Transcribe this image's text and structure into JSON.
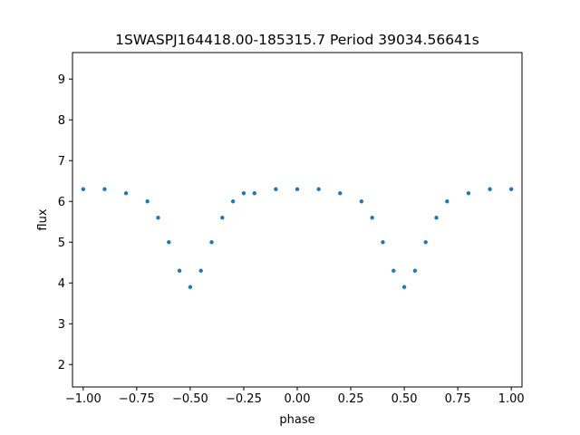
{
  "chart_data": {
    "type": "scatter",
    "title": "1SWASPJ164418.00-185315.7 Period 39034.56641s",
    "xlabel": "phase",
    "ylabel": "flux",
    "xlim": [
      -1.05,
      1.05
    ],
    "ylim": [
      1.45,
      9.65
    ],
    "x_ticks": [
      -1.0,
      -0.75,
      -0.5,
      -0.25,
      0.0,
      0.25,
      0.5,
      0.75,
      1.0
    ],
    "x_tick_labels": [
      "−1.00",
      "−0.75",
      "−0.50",
      "−0.25",
      "0.00",
      "0.25",
      "0.50",
      "0.75",
      "1.00"
    ],
    "y_ticks": [
      2,
      3,
      4,
      5,
      6,
      7,
      8,
      9
    ],
    "y_tick_labels": [
      "2",
      "3",
      "4",
      "5",
      "6",
      "7",
      "8",
      "9"
    ],
    "grid": false,
    "legend": "none",
    "marker_color": "#1f77b4",
    "series": [
      {
        "x": [
          -1.0,
          -0.9,
          -0.8,
          -0.7,
          -0.65,
          -0.6,
          -0.55,
          -0.5,
          -0.45,
          -0.4,
          -0.35,
          -0.3,
          -0.25,
          -0.2,
          -0.1,
          0.0,
          0.1,
          0.2,
          0.3,
          0.35,
          0.4,
          0.45,
          0.5,
          0.55,
          0.6,
          0.65,
          0.7,
          0.8,
          0.9,
          1.0
        ],
        "y": [
          6.3,
          6.3,
          6.2,
          6.0,
          5.6,
          5.0,
          4.3,
          3.9,
          4.3,
          5.0,
          5.6,
          6.0,
          6.2,
          6.2,
          6.3,
          6.3,
          6.3,
          6.2,
          6.0,
          5.6,
          5.0,
          4.3,
          3.9,
          4.3,
          5.0,
          5.6,
          6.0,
          6.2,
          6.3,
          6.3
        ]
      }
    ]
  }
}
